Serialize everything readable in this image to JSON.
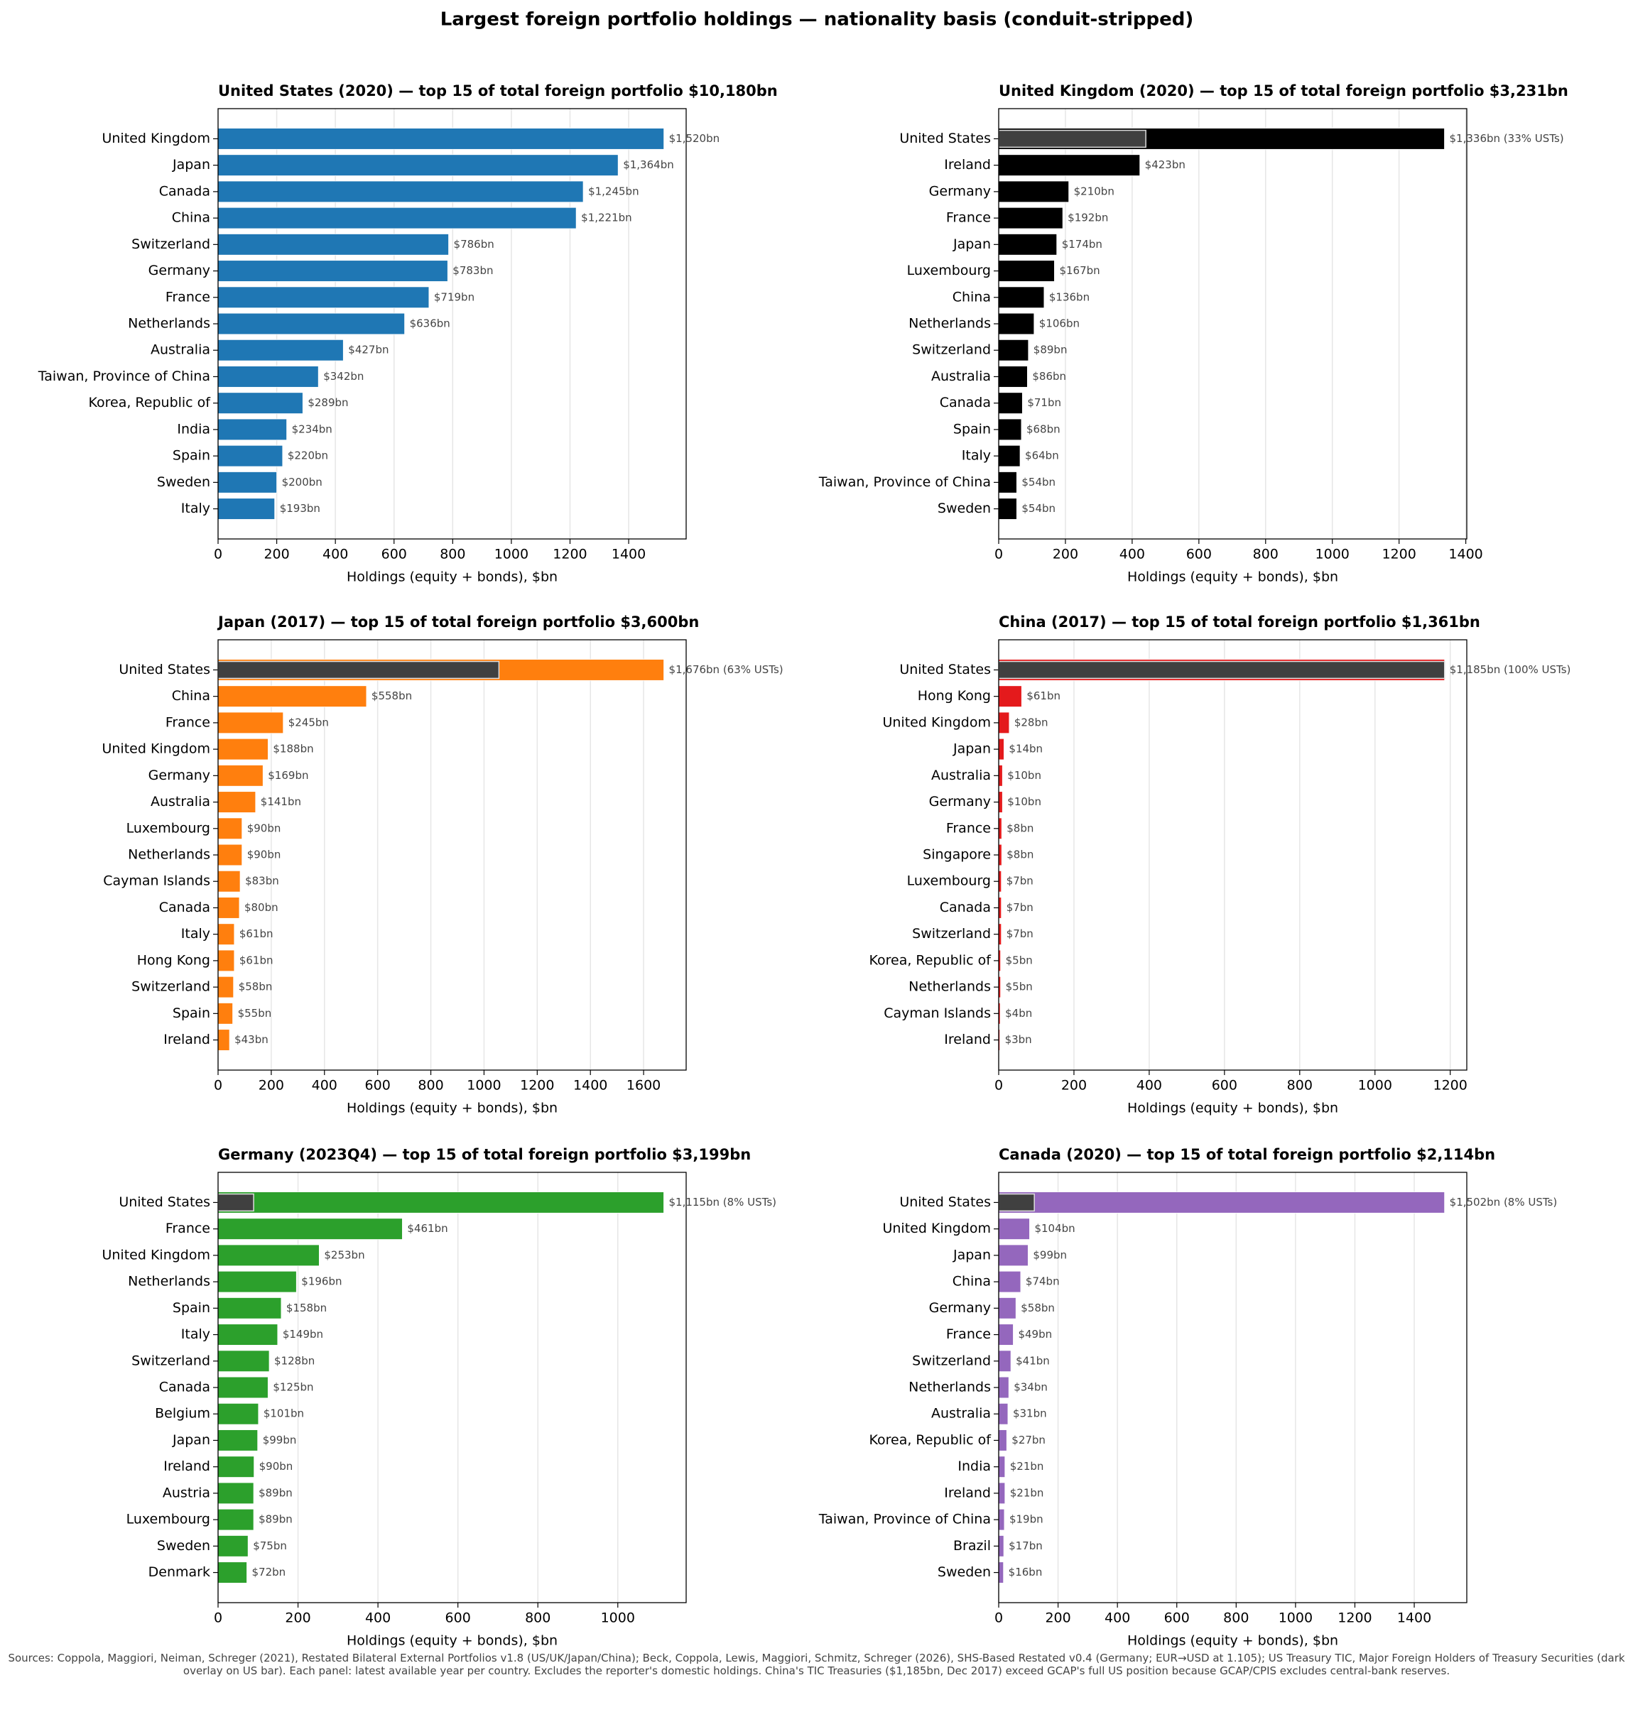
{
  "title": "Largest foreign portfolio holdings — nationality basis (conduit-stripped)",
  "note": "Sources: Coppola, Maggiori, Neiman, Schreger (2021), Restated Bilateral External Portfolios v1.8 (US/UK/Japan/China); Beck, Coppola, Lewis, Maggiori, Schmitz, Schreger (2026), SHS-Based Restated v0.4 (Germany; EUR→USD at 1.105); US Treasury TIC, Major Foreign Holders of Treasury Securities (dark overlay on US bar). Each panel: latest available year per country. Excludes the reporter's domestic holdings. China's TIC Treasuries ($1,185bn, Dec 2017) exceed GCAP's full US position because GCAP/CPIS excludes central-bank reserves.",
  "chart_data": [
    {
      "type": "barh",
      "title": "United States (2020) — top 15 of total foreign portfolio $10,180bn",
      "xlabel": "Holdings (equity + bonds), $bn",
      "color": "#1f77b4",
      "grid": true,
      "categories": [
        "United Kingdom",
        "Japan",
        "Canada",
        "China",
        "Switzerland",
        "Germany",
        "France",
        "Netherlands",
        "Australia",
        "Taiwan, Province of China",
        "Korea, Republic of",
        "India",
        "Spain",
        "Sweden",
        "Italy"
      ],
      "values": [
        1520,
        1364,
        1245,
        1221,
        786,
        783,
        719,
        636,
        427,
        342,
        289,
        234,
        220,
        200,
        193
      ],
      "value_labels": [
        "$1,520bn",
        "$1,364bn",
        "$1,245bn",
        "$1,221bn",
        "$786bn",
        "$783bn",
        "$719bn",
        "$636bn",
        "$427bn",
        "$342bn",
        "$289bn",
        "$234bn",
        "$220bn",
        "$200bn",
        "$193bn"
      ],
      "xlim": [
        0,
        1596
      ],
      "xticks": [
        0,
        200,
        400,
        600,
        800,
        1000,
        1200,
        1400
      ]
    },
    {
      "type": "barh",
      "title": "United Kingdom (2020) — top 15 of total foreign portfolio $3,231bn",
      "xlabel": "Holdings (equity + bonds), $bn",
      "color": "#000000",
      "grid": true,
      "categories": [
        "United States",
        "Ireland",
        "Germany",
        "France",
        "Japan",
        "Luxembourg",
        "China",
        "Netherlands",
        "Switzerland",
        "Australia",
        "Canada",
        "Spain",
        "Italy",
        "Taiwan, Province of China",
        "Sweden"
      ],
      "values": [
        1336,
        423,
        210,
        192,
        174,
        167,
        136,
        106,
        89,
        86,
        71,
        68,
        64,
        54,
        54
      ],
      "value_labels": [
        "$1,336bn (33% USTs)",
        "$423bn",
        "$210bn",
        "$192bn",
        "$174bn",
        "$167bn",
        "$136bn",
        "$106bn",
        "$89bn",
        "$86bn",
        "$71bn",
        "$68bn",
        "$64bn",
        "$54bn",
        "$54bn"
      ],
      "overlay_value": 441,
      "overlay_color": "#404040",
      "xlim": [
        0,
        1403
      ],
      "xticks": [
        0,
        200,
        400,
        600,
        800,
        1000,
        1200,
        1400
      ]
    },
    {
      "type": "barh",
      "title": "Japan (2017) — top 15 of total foreign portfolio $3,600bn",
      "xlabel": "Holdings (equity + bonds), $bn",
      "color": "#ff7f0e",
      "grid": true,
      "categories": [
        "United States",
        "China",
        "France",
        "United Kingdom",
        "Germany",
        "Australia",
        "Luxembourg",
        "Netherlands",
        "Cayman Islands",
        "Canada",
        "Italy",
        "Hong Kong",
        "Switzerland",
        "Spain",
        "Ireland"
      ],
      "values": [
        1676,
        558,
        245,
        188,
        169,
        141,
        90,
        90,
        83,
        80,
        61,
        61,
        58,
        55,
        43
      ],
      "value_labels": [
        "$1,676bn (63% USTs)",
        "$558bn",
        "$245bn",
        "$188bn",
        "$169bn",
        "$141bn",
        "$90bn",
        "$90bn",
        "$83bn",
        "$80bn",
        "$61bn",
        "$61bn",
        "$58bn",
        "$55bn",
        "$43bn"
      ],
      "overlay_value": 1056,
      "overlay_color": "#404040",
      "xlim": [
        0,
        1760
      ],
      "xticks": [
        0,
        200,
        400,
        600,
        800,
        1000,
        1200,
        1400,
        1600
      ]
    },
    {
      "type": "barh",
      "title": "China (2017) — top 15 of total foreign portfolio $1,361bn",
      "xlabel": "Holdings (equity + bonds), $bn",
      "color": "#e41a1c",
      "grid": true,
      "categories": [
        "United States",
        "Hong Kong",
        "United Kingdom",
        "Japan",
        "Australia",
        "Germany",
        "France",
        "Singapore",
        "Luxembourg",
        "Canada",
        "Switzerland",
        "Korea, Republic of",
        "Netherlands",
        "Cayman Islands",
        "Ireland"
      ],
      "values": [
        1185,
        61,
        28,
        14,
        10,
        10,
        8,
        8,
        7,
        7,
        7,
        5,
        5,
        4,
        3
      ],
      "value_labels": [
        "$1,185bn (100% USTs)",
        "$61bn",
        "$28bn",
        "$14bn",
        "$10bn",
        "$10bn",
        "$8bn",
        "$8bn",
        "$7bn",
        "$7bn",
        "$7bn",
        "$5bn",
        "$5bn",
        "$4bn",
        "$3bn"
      ],
      "overlay_value": 1185,
      "overlay_color": "#404040",
      "xlim": [
        0,
        1244
      ],
      "xticks": [
        0,
        200,
        400,
        600,
        800,
        1000,
        1200
      ]
    },
    {
      "type": "barh",
      "title": "Germany (2023Q4) — top 15 of total foreign portfolio $3,199bn",
      "xlabel": "Holdings (equity + bonds), $bn",
      "color": "#2ca02c",
      "grid": true,
      "categories": [
        "United States",
        "France",
        "United Kingdom",
        "Netherlands",
        "Spain",
        "Italy",
        "Switzerland",
        "Canada",
        "Belgium",
        "Japan",
        "Ireland",
        "Austria",
        "Luxembourg",
        "Sweden",
        "Denmark"
      ],
      "values": [
        1115,
        461,
        253,
        196,
        158,
        149,
        128,
        125,
        101,
        99,
        90,
        89,
        89,
        75,
        72
      ],
      "value_labels": [
        "$1,115bn (8% USTs)",
        "$461bn",
        "$253bn",
        "$196bn",
        "$158bn",
        "$149bn",
        "$128bn",
        "$125bn",
        "$101bn",
        "$99bn",
        "$90bn",
        "$89bn",
        "$89bn",
        "$75bn",
        "$72bn"
      ],
      "overlay_value": 89,
      "overlay_color": "#404040",
      "xlim": [
        0,
        1171
      ],
      "xticks": [
        0,
        200,
        400,
        600,
        800,
        1000
      ]
    },
    {
      "type": "barh",
      "title": "Canada (2020) — top 15 of total foreign portfolio $2,114bn",
      "xlabel": "Holdings (equity + bonds), $bn",
      "color": "#9467bd",
      "grid": true,
      "categories": [
        "United States",
        "United Kingdom",
        "Japan",
        "China",
        "Germany",
        "France",
        "Switzerland",
        "Netherlands",
        "Australia",
        "Korea, Republic of",
        "India",
        "Ireland",
        "Taiwan, Province of China",
        "Brazil",
        "Sweden"
      ],
      "values": [
        1502,
        104,
        99,
        74,
        58,
        49,
        41,
        34,
        31,
        27,
        21,
        21,
        19,
        17,
        16
      ],
      "value_labels": [
        "$1,502bn (8% USTs)",
        "$104bn",
        "$99bn",
        "$74bn",
        "$58bn",
        "$49bn",
        "$41bn",
        "$34bn",
        "$31bn",
        "$27bn",
        "$21bn",
        "$21bn",
        "$19bn",
        "$17bn",
        "$16bn"
      ],
      "overlay_value": 120,
      "overlay_color": "#404040",
      "xlim": [
        0,
        1577
      ],
      "xticks": [
        0,
        200,
        400,
        600,
        800,
        1000,
        1200,
        1400
      ]
    }
  ]
}
